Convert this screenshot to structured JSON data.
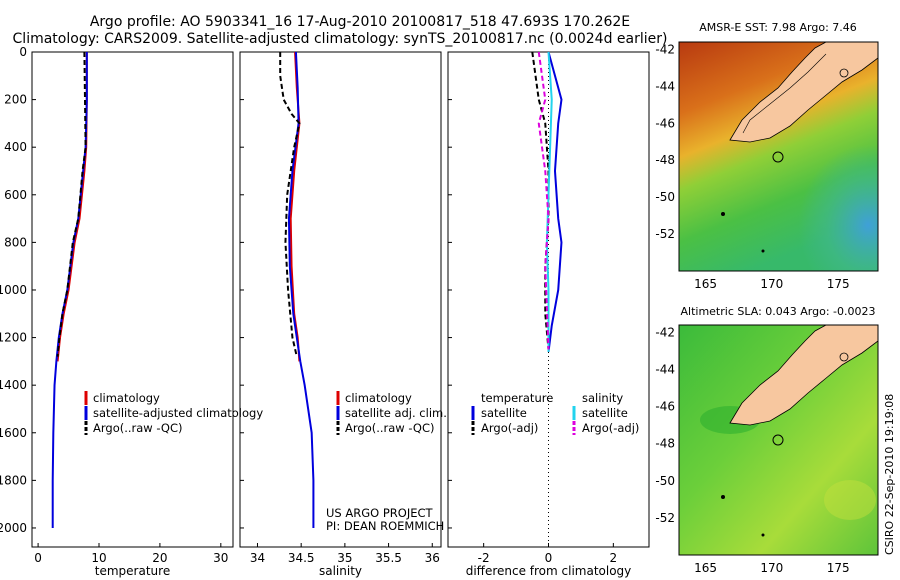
{
  "header": {
    "line1": "Argo profile: AO 5903341_16 17-Aug-2010 20100817_518 47.693S 170.262E",
    "line2": "Climatology: CARS2009. Satellite-adjusted climatology: synTS_20100817.nc (0.0024d earlier)"
  },
  "colors": {
    "climatology": "#dd0000",
    "satellite": "#0000dd",
    "argo": "#000000",
    "salinity_satellite": "#22d3ee",
    "salinity_argo": "#dd00dd",
    "land": "#f7c79f"
  },
  "project": {
    "line1": "US ARGO PROJECT",
    "line2": "PI: DEAN ROEMMICH"
  },
  "stamp": "CSIRO 22-Sep-2010 19:19:08",
  "chart_data": [
    {
      "type": "line",
      "xlabel": "temperature",
      "ylabel": "",
      "xlim": [
        -1,
        32
      ],
      "ylim": [
        2080,
        0
      ],
      "xticks": [
        "0",
        "10",
        "20",
        "30"
      ],
      "xtick_values": [
        0,
        10,
        20,
        30
      ],
      "yticks": [
        "0",
        "200",
        "400",
        "600",
        "800",
        "1000",
        "1200",
        "1400",
        "1600",
        "1800",
        "2000"
      ],
      "ytick_values": [
        0,
        200,
        400,
        600,
        800,
        1000,
        1200,
        1400,
        1600,
        1800,
        2000
      ],
      "legend": [
        "climatology",
        "satellite-adjusted climatology",
        "Argo(..raw -QC)"
      ],
      "series": [
        {
          "name": "climatology",
          "color": "#dd0000",
          "style": "solid",
          "x": [
            8.0,
            8.0,
            7.9,
            7.6,
            6.8,
            6.0,
            5.0,
            4.2,
            3.6,
            3.2
          ],
          "y": [
            0,
            200,
            400,
            500,
            700,
            800,
            1000,
            1100,
            1200,
            1300
          ]
        },
        {
          "name": "satellite-adjusted climatology",
          "color": "#0000dd",
          "style": "solid",
          "x": [
            8.0,
            8.0,
            7.8,
            7.4,
            6.6,
            5.8,
            4.8,
            4.0,
            3.4,
            3.0,
            2.7,
            2.6,
            2.5,
            2.4,
            2.4
          ],
          "y": [
            0,
            200,
            400,
            500,
            700,
            800,
            1000,
            1100,
            1200,
            1300,
            1400,
            1500,
            1600,
            1800,
            2000
          ]
        },
        {
          "name": "Argo(..raw -QC)",
          "color": "#000000",
          "style": "dashed",
          "x": [
            7.6,
            7.7,
            7.8,
            7.3,
            6.6,
            5.7,
            4.8,
            4.0,
            3.5,
            3.2
          ],
          "y": [
            0,
            200,
            400,
            500,
            700,
            800,
            1000,
            1100,
            1200,
            1280
          ]
        }
      ]
    },
    {
      "type": "line",
      "xlabel": "salinity",
      "ylabel": "",
      "xlim": [
        33.8,
        36.1
      ],
      "ylim": [
        2080,
        0
      ],
      "xticks": [
        "34",
        "34.5",
        "35",
        "35.5",
        "36"
      ],
      "xtick_values": [
        34,
        34.5,
        35,
        35.5,
        36
      ],
      "legend": [
        "climatology",
        "satellite adj. clim.",
        "Argo(..raw -QC)"
      ],
      "series": [
        {
          "name": "climatology",
          "color": "#dd0000",
          "style": "solid",
          "x": [
            34.43,
            34.45,
            34.48,
            34.42,
            34.38,
            34.39,
            34.42,
            34.46,
            34.48
          ],
          "y": [
            0,
            150,
            300,
            500,
            700,
            900,
            1100,
            1200,
            1300
          ]
        },
        {
          "name": "satellite adj. clim.",
          "color": "#0000dd",
          "style": "solid",
          "x": [
            34.44,
            34.46,
            34.47,
            34.4,
            34.36,
            34.37,
            34.41,
            34.45,
            34.49,
            34.54,
            34.58,
            34.62,
            34.64,
            34.64
          ],
          "y": [
            0,
            150,
            300,
            500,
            700,
            900,
            1100,
            1200,
            1300,
            1400,
            1500,
            1600,
            1800,
            2000
          ]
        },
        {
          "name": "Argo(..raw -QC)",
          "color": "#000000",
          "style": "dashed",
          "x": [
            34.26,
            34.26,
            34.3,
            34.39,
            34.48,
            34.42,
            34.34,
            34.32,
            34.35,
            34.4,
            34.45
          ],
          "y": [
            0,
            100,
            200,
            260,
            300,
            400,
            600,
            800,
            1000,
            1200,
            1280
          ]
        }
      ]
    },
    {
      "type": "line",
      "xlabel": "difference from climatology",
      "ylabel": "",
      "xlim": [
        -3.1,
        3.1
      ],
      "ylim": [
        2080,
        0
      ],
      "xticks": [
        "-2",
        "0",
        "2"
      ],
      "xtick_values": [
        -2,
        0,
        2
      ],
      "zero_line": true,
      "legend_titles": [
        "temperature",
        "salinity"
      ],
      "legend": [
        "satellite",
        "Argo(-adj)",
        "satellite",
        "Argo(-adj)"
      ],
      "series": [
        {
          "name": "temperature satellite",
          "color": "#0000dd",
          "style": "solid",
          "x": [
            0.0,
            0.2,
            0.4,
            0.3,
            0.2,
            0.3,
            0.4,
            0.3,
            0.1,
            0.0
          ],
          "y": [
            0,
            100,
            200,
            300,
            500,
            700,
            800,
            1000,
            1150,
            1260
          ]
        },
        {
          "name": "temperature Argo(-adj)",
          "color": "#000000",
          "style": "dashed",
          "x": [
            -0.5,
            -0.4,
            -0.3,
            -0.1,
            0.0,
            0.0,
            -0.1,
            -0.1,
            0.0
          ],
          "y": [
            0,
            100,
            200,
            300,
            500,
            700,
            900,
            1100,
            1250
          ]
        },
        {
          "name": "salinity satellite",
          "color": "#22d3ee",
          "style": "solid",
          "x": [
            0.0,
            0.05,
            0.1,
            0.05,
            0.0,
            -0.05,
            0.0,
            0.0
          ],
          "y": [
            0,
            100,
            200,
            400,
            600,
            800,
            1000,
            1260
          ]
        },
        {
          "name": "salinity Argo(-adj)",
          "color": "#dd00dd",
          "style": "dashed",
          "x": [
            -0.3,
            -0.2,
            -0.1,
            -0.3,
            -0.1,
            0.0,
            -0.1,
            0.0
          ],
          "y": [
            0,
            100,
            200,
            300,
            500,
            700,
            900,
            1250
          ]
        }
      ]
    },
    {
      "type": "heatmap",
      "title": "AMSR-E SST: 7.98 Argo: 7.46",
      "xlim": [
        163,
        178
      ],
      "ylim": [
        -54,
        -41.6
      ],
      "xticks": [
        "165",
        "170",
        "175"
      ],
      "xtick_values": [
        165,
        170,
        175
      ],
      "yticks": [
        "-42",
        "-44",
        "-46",
        "-48",
        "-50",
        "-52"
      ],
      "ytick_values": [
        -42,
        -44,
        -46,
        -48,
        -50,
        -52
      ],
      "argo_position": {
        "lon": 170.262,
        "lat": -47.693
      }
    },
    {
      "type": "heatmap",
      "title": "Altimetric SLA: 0.043 Argo: -0.0023",
      "xlim": [
        163,
        178
      ],
      "ylim": [
        -54,
        -41.6
      ],
      "xticks": [
        "165",
        "170",
        "175"
      ],
      "xtick_values": [
        165,
        170,
        175
      ],
      "yticks": [
        "-42",
        "-44",
        "-46",
        "-48",
        "-50",
        "-52"
      ],
      "ytick_values": [
        -42,
        -44,
        -46,
        -48,
        -50,
        -52
      ],
      "argo_position": {
        "lon": 170.262,
        "lat": -47.693
      }
    }
  ]
}
